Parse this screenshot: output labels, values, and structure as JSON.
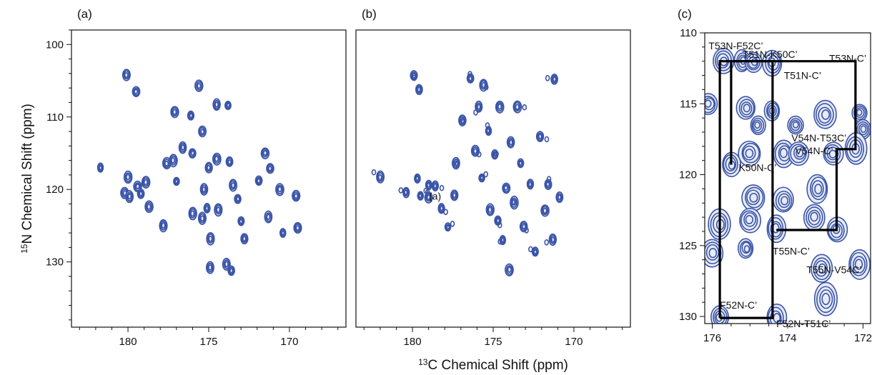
{
  "chart_data": [
    {
      "panel": "(a)",
      "type": "scatter",
      "xlabel": "",
      "ylabel_parts": {
        "sup": "15",
        "text": "N Chemical Shift (ppm)"
      },
      "xlim": [
        183.5,
        166.5
      ],
      "ylim": [
        98,
        139
      ],
      "xticks": [
        180,
        175,
        170
      ],
      "yticks": [
        100,
        110,
        120,
        130
      ],
      "color": "#3b55a8",
      "points": [
        {
          "x": 181.7,
          "y": 117.0
        },
        {
          "x": 180.1,
          "y": 104.2
        },
        {
          "x": 179.5,
          "y": 106.5
        },
        {
          "x": 180.0,
          "y": 118.3
        },
        {
          "x": 180.2,
          "y": 120.5
        },
        {
          "x": 179.9,
          "y": 121.0
        },
        {
          "x": 179.4,
          "y": 119.6
        },
        {
          "x": 179.2,
          "y": 120.6
        },
        {
          "x": 178.9,
          "y": 119.0
        },
        {
          "x": 178.7,
          "y": 122.4
        },
        {
          "x": 177.8,
          "y": 125.0
        },
        {
          "x": 177.6,
          "y": 116.4
        },
        {
          "x": 177.2,
          "y": 116.0
        },
        {
          "x": 177.0,
          "y": 118.9
        },
        {
          "x": 177.1,
          "y": 109.3
        },
        {
          "x": 176.6,
          "y": 114.2
        },
        {
          "x": 176.1,
          "y": 109.8
        },
        {
          "x": 176.0,
          "y": 115.0
        },
        {
          "x": 176.0,
          "y": 123.3
        },
        {
          "x": 175.6,
          "y": 105.7
        },
        {
          "x": 175.4,
          "y": 112.0
        },
        {
          "x": 175.3,
          "y": 120.0
        },
        {
          "x": 175.4,
          "y": 124.0
        },
        {
          "x": 175.0,
          "y": 117.0
        },
        {
          "x": 175.1,
          "y": 122.6
        },
        {
          "x": 174.9,
          "y": 126.8
        },
        {
          "x": 174.9,
          "y": 130.8
        },
        {
          "x": 174.5,
          "y": 108.3
        },
        {
          "x": 174.5,
          "y": 115.8
        },
        {
          "x": 174.4,
          "y": 122.8
        },
        {
          "x": 173.8,
          "y": 108.4
        },
        {
          "x": 173.7,
          "y": 116.2
        },
        {
          "x": 173.9,
          "y": 130.3
        },
        {
          "x": 173.6,
          "y": 131.2
        },
        {
          "x": 173.5,
          "y": 119.4
        },
        {
          "x": 173.2,
          "y": 121.3
        },
        {
          "x": 173.0,
          "y": 124.4
        },
        {
          "x": 172.8,
          "y": 126.8
        },
        {
          "x": 171.9,
          "y": 118.8
        },
        {
          "x": 171.5,
          "y": 115.0
        },
        {
          "x": 171.3,
          "y": 123.8
        },
        {
          "x": 171.2,
          "y": 117.1
        },
        {
          "x": 170.6,
          "y": 120.0
        },
        {
          "x": 170.4,
          "y": 126.0
        },
        {
          "x": 169.6,
          "y": 120.9
        },
        {
          "x": 169.5,
          "y": 125.3
        }
      ]
    },
    {
      "panel": "(b)",
      "type": "scatter",
      "xlabel_parts": {
        "sup": "13",
        "text": "C Chemical Shift (ppm)"
      },
      "ylabel": "",
      "xlim": [
        183.5,
        166.5
      ],
      "ylim": [
        98,
        139
      ],
      "xticks": [
        180,
        175,
        170
      ],
      "color": "#3b55a8",
      "inset_label": "(a)",
      "inset_label_at": {
        "x": 178.6,
        "y": 120.8
      },
      "points": [
        {
          "x": 182.0,
          "y": 118.3
        },
        {
          "x": 180.4,
          "y": 120.4
        },
        {
          "x": 179.9,
          "y": 104.3
        },
        {
          "x": 179.6,
          "y": 106.2
        },
        {
          "x": 179.7,
          "y": 118.5
        },
        {
          "x": 179.5,
          "y": 120.9
        },
        {
          "x": 179.0,
          "y": 121.1
        },
        {
          "x": 179.0,
          "y": 119.4
        },
        {
          "x": 178.6,
          "y": 119.5
        },
        {
          "x": 178.2,
          "y": 122.6
        },
        {
          "x": 177.8,
          "y": 125.2
        },
        {
          "x": 177.4,
          "y": 120.8
        },
        {
          "x": 177.3,
          "y": 116.4
        },
        {
          "x": 176.9,
          "y": 110.5
        },
        {
          "x": 176.4,
          "y": 104.7
        },
        {
          "x": 176.1,
          "y": 114.7
        },
        {
          "x": 175.9,
          "y": 108.6
        },
        {
          "x": 175.7,
          "y": 118.4
        },
        {
          "x": 175.6,
          "y": 105.6
        },
        {
          "x": 175.3,
          "y": 111.9
        },
        {
          "x": 175.2,
          "y": 122.8
        },
        {
          "x": 174.9,
          "y": 115.2
        },
        {
          "x": 174.7,
          "y": 124.3
        },
        {
          "x": 174.6,
          "y": 108.6
        },
        {
          "x": 174.4,
          "y": 127.0
        },
        {
          "x": 174.2,
          "y": 119.8
        },
        {
          "x": 174.0,
          "y": 131.1
        },
        {
          "x": 173.9,
          "y": 113.5
        },
        {
          "x": 173.7,
          "y": 121.8
        },
        {
          "x": 173.5,
          "y": 108.6
        },
        {
          "x": 173.3,
          "y": 116.4
        },
        {
          "x": 173.1,
          "y": 125.1
        },
        {
          "x": 172.7,
          "y": 119.3
        },
        {
          "x": 172.4,
          "y": 128.6
        },
        {
          "x": 172.1,
          "y": 112.7
        },
        {
          "x": 171.8,
          "y": 122.9
        },
        {
          "x": 171.6,
          "y": 119.3
        },
        {
          "x": 171.3,
          "y": 126.9
        },
        {
          "x": 171.2,
          "y": 104.8
        },
        {
          "x": 170.9,
          "y": 121.1
        }
      ]
    },
    {
      "panel": "(c)",
      "type": "scatter",
      "xlim": [
        176.2,
        171.8
      ],
      "ylim": [
        110,
        130.5
      ],
      "xticks": [
        176,
        174,
        172
      ],
      "yticks": [
        110,
        115,
        120,
        125,
        130
      ],
      "color": "#3b55a8",
      "points": [
        {
          "x": 176.1,
          "y": 115.0
        },
        {
          "x": 175.7,
          "y": 112.0
        },
        {
          "x": 175.2,
          "y": 112.0
        },
        {
          "x": 174.9,
          "y": 112.1
        },
        {
          "x": 174.4,
          "y": 112.1
        },
        {
          "x": 175.1,
          "y": 115.3
        },
        {
          "x": 174.8,
          "y": 116.5
        },
        {
          "x": 174.4,
          "y": 115.5
        },
        {
          "x": 173.8,
          "y": 116.5
        },
        {
          "x": 173.0,
          "y": 115.8
        },
        {
          "x": 172.1,
          "y": 115.6
        },
        {
          "x": 172.0,
          "y": 116.8
        },
        {
          "x": 175.0,
          "y": 118.5
        },
        {
          "x": 174.1,
          "y": 118.5
        },
        {
          "x": 173.7,
          "y": 118.5
        },
        {
          "x": 172.8,
          "y": 118.5
        },
        {
          "x": 172.2,
          "y": 118.2
        },
        {
          "x": 175.5,
          "y": 119.3
        },
        {
          "x": 173.2,
          "y": 121.0
        },
        {
          "x": 174.9,
          "y": 121.6
        },
        {
          "x": 174.1,
          "y": 121.8
        },
        {
          "x": 173.3,
          "y": 123.0
        },
        {
          "x": 175.8,
          "y": 123.5
        },
        {
          "x": 175.0,
          "y": 123.2
        },
        {
          "x": 174.3,
          "y": 123.8
        },
        {
          "x": 172.7,
          "y": 123.9
        },
        {
          "x": 176.0,
          "y": 125.5
        },
        {
          "x": 175.1,
          "y": 125.2
        },
        {
          "x": 173.1,
          "y": 126.6
        },
        {
          "x": 172.1,
          "y": 126.3
        },
        {
          "x": 175.8,
          "y": 130.1
        },
        {
          "x": 174.3,
          "y": 130.1
        },
        {
          "x": 173.0,
          "y": 128.8
        }
      ],
      "walk": [
        [
          175.8,
          130.1
        ],
        [
          175.8,
          112.0
        ],
        [
          174.4,
          112.0
        ],
        [
          174.4,
          130.1
        ],
        [
          175.8,
          130.1
        ]
      ],
      "walk2": [
        [
          175.5,
          119.3
        ],
        [
          175.5,
          112.0
        ],
        [
          172.2,
          112.0
        ],
        [
          172.2,
          118.2
        ],
        [
          172.7,
          118.2
        ],
        [
          172.7,
          123.9
        ],
        [
          174.3,
          123.9
        ]
      ],
      "annotations": [
        {
          "text": "T53N-F52C’",
          "x": 176.1,
          "y": 110.9,
          "anchor": "start"
        },
        {
          "text": "T51N-K50C’",
          "x": 175.2,
          "y": 111.5,
          "anchor": "start"
        },
        {
          "text": "T53N-C’",
          "x": 172.9,
          "y": 111.8,
          "anchor": "start"
        },
        {
          "text": "T51N-C’",
          "x": 174.1,
          "y": 113.0,
          "anchor": "start"
        },
        {
          "text": "V54N-T53C’",
          "x": 173.9,
          "y": 117.4,
          "anchor": "start"
        },
        {
          "text": "V54N-C’",
          "x": 173.8,
          "y": 118.3,
          "anchor": "start"
        },
        {
          "text": "K50N-C’",
          "x": 175.3,
          "y": 119.5,
          "anchor": "start"
        },
        {
          "text": "T55N-C’",
          "x": 174.4,
          "y": 125.4,
          "anchor": "start"
        },
        {
          "text": "T55N-V54C’",
          "x": 173.5,
          "y": 126.7,
          "anchor": "start"
        },
        {
          "text": "F52N-C’",
          "x": 175.8,
          "y": 129.2,
          "anchor": "start"
        },
        {
          "text": "F52N-T51C’",
          "x": 174.3,
          "y": 130.5,
          "anchor": "start"
        }
      ]
    }
  ]
}
